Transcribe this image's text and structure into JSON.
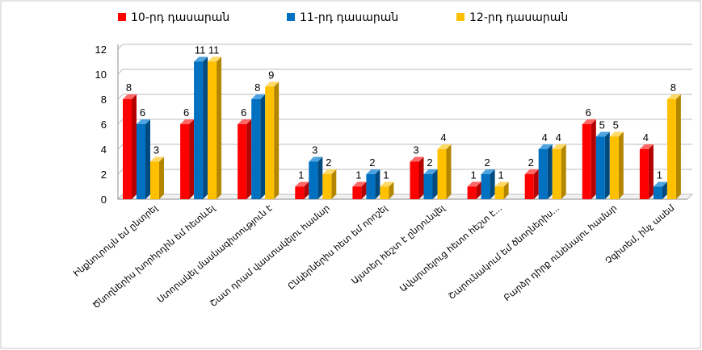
{
  "chart_data": {
    "type": "bar",
    "categories": [
      "Ինքնուրույն եմ ընտրել",
      "Ծնողներիս խորհրդին եմ հետևել",
      "Ստորակել մասնագիտություն է",
      "Շատ դրամ վաստակելու համար",
      "Ընկերներիս հետ եմ որոշել",
      "Այստեղ հեշտ է ընդունվել",
      "Ավարտելուց հետո հեշտ է...",
      "Շարունակում եմ ծնողներիս...",
      "Բարձր դիրք ունենալու համար",
      "Չգիտեմ, ինչ ասեմ"
    ],
    "series": [
      {
        "name": "10-րդ դասարան",
        "values": [
          8,
          6,
          6,
          1,
          1,
          3,
          1,
          2,
          6,
          4
        ]
      },
      {
        "name": "11-րդ դասարան",
        "values": [
          6,
          11,
          8,
          3,
          2,
          2,
          2,
          4,
          5,
          1
        ]
      },
      {
        "name": "12-րդ դասարան",
        "values": [
          3,
          11,
          9,
          2,
          1,
          4,
          1,
          4,
          5,
          8
        ]
      }
    ],
    "ylim": [
      0,
      12
    ],
    "yticks": [
      0,
      2,
      4,
      6,
      8,
      10,
      12
    ],
    "grid": true,
    "legend_position": "top",
    "data_labels": true,
    "colors": [
      "#ff0000",
      "#0070c0",
      "#ffc000"
    ],
    "side_colors": [
      "#b30000",
      "#004a80",
      "#b38600"
    ],
    "top_colors": [
      "#ff6666",
      "#4da3e0",
      "#ffd966"
    ]
  }
}
